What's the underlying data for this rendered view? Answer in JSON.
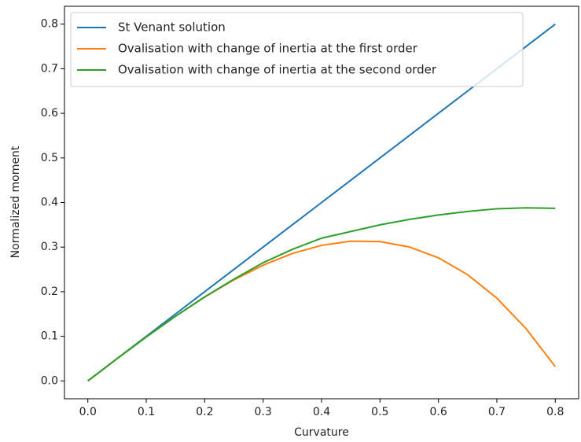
{
  "chart_data": {
    "type": "line",
    "xlabel": "Curvature",
    "ylabel": "Normalized moment",
    "x": [
      0,
      0.05,
      0.1,
      0.15,
      0.2,
      0.25,
      0.3,
      0.35,
      0.4,
      0.45,
      0.5,
      0.55,
      0.6,
      0.65,
      0.7,
      0.75,
      0.8
    ],
    "series": [
      {
        "name": "St Venant solution",
        "color": "#1f77b4",
        "values": [
          0,
          0.05,
          0.1,
          0.15,
          0.2,
          0.25,
          0.3,
          0.35,
          0.4,
          0.45,
          0.5,
          0.55,
          0.6,
          0.65,
          0.7,
          0.75,
          0.8
        ]
      },
      {
        "name": "Ovalisation with change of inertia at the first order",
        "color": "#ff7f0e",
        "values": [
          0,
          0.0498,
          0.0985,
          0.1449,
          0.188,
          0.2266,
          0.2595,
          0.2857,
          0.304,
          0.3133,
          0.3125,
          0.3004,
          0.276,
          0.2381,
          0.1855,
          0.1172,
          0.032
        ]
      },
      {
        "name": "Ovalisation with change of inertia at the second order",
        "color": "#2ca02c",
        "values": [
          0,
          0.0498,
          0.0985,
          0.145,
          0.1885,
          0.228,
          0.265,
          0.295,
          0.32,
          0.335,
          0.35,
          0.362,
          0.372,
          0.38,
          0.386,
          0.388,
          0.387
        ]
      }
    ],
    "xlim": [
      -0.04,
      0.84
    ],
    "ylim": [
      -0.04,
      0.84
    ],
    "xticks": [
      {
        "value": 0,
        "label": "0.0"
      },
      0.1,
      0.2,
      0.3,
      0.4,
      0.5,
      0.6,
      0.7,
      0.8
    ],
    "yticks": [
      {
        "value": 0,
        "label": "0.0"
      },
      0.1,
      0.2,
      0.3,
      0.4,
      0.5,
      0.6,
      0.7,
      0.8
    ],
    "legend": "upper left",
    "grid": false
  }
}
